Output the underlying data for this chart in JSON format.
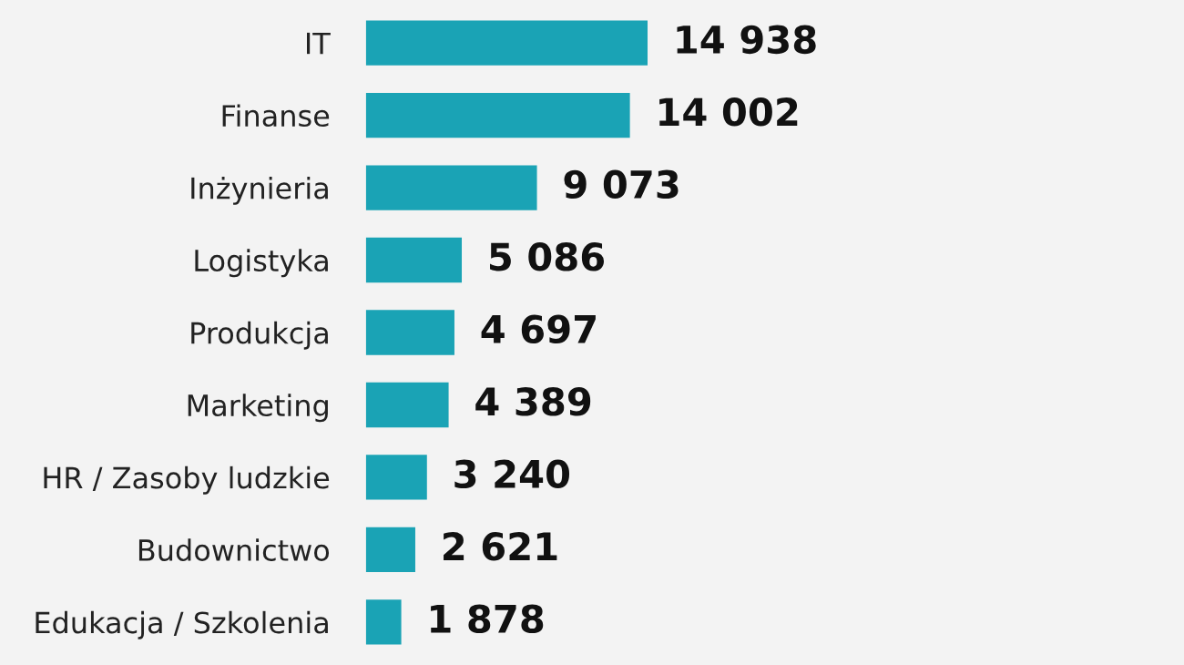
{
  "chart_data": {
    "type": "bar",
    "orientation": "horizontal",
    "categories": [
      "IT",
      "Finanse",
      "Inżynieria",
      "Logistyka",
      "Produkcja",
      "Marketing",
      "HR / Zasoby ludzkie",
      "Budownictwo",
      "Edukacja / Szkolenia"
    ],
    "values": [
      14938,
      14002,
      9073,
      5086,
      4697,
      4389,
      3240,
      2621,
      1878
    ],
    "value_labels": [
      "14 938",
      "14 002",
      "9 073",
      "5 086",
      "4 697",
      "4 389",
      "3 240",
      "2 621",
      "1 878"
    ],
    "color": "#1aa3b5",
    "grid": false,
    "legend": false
  }
}
